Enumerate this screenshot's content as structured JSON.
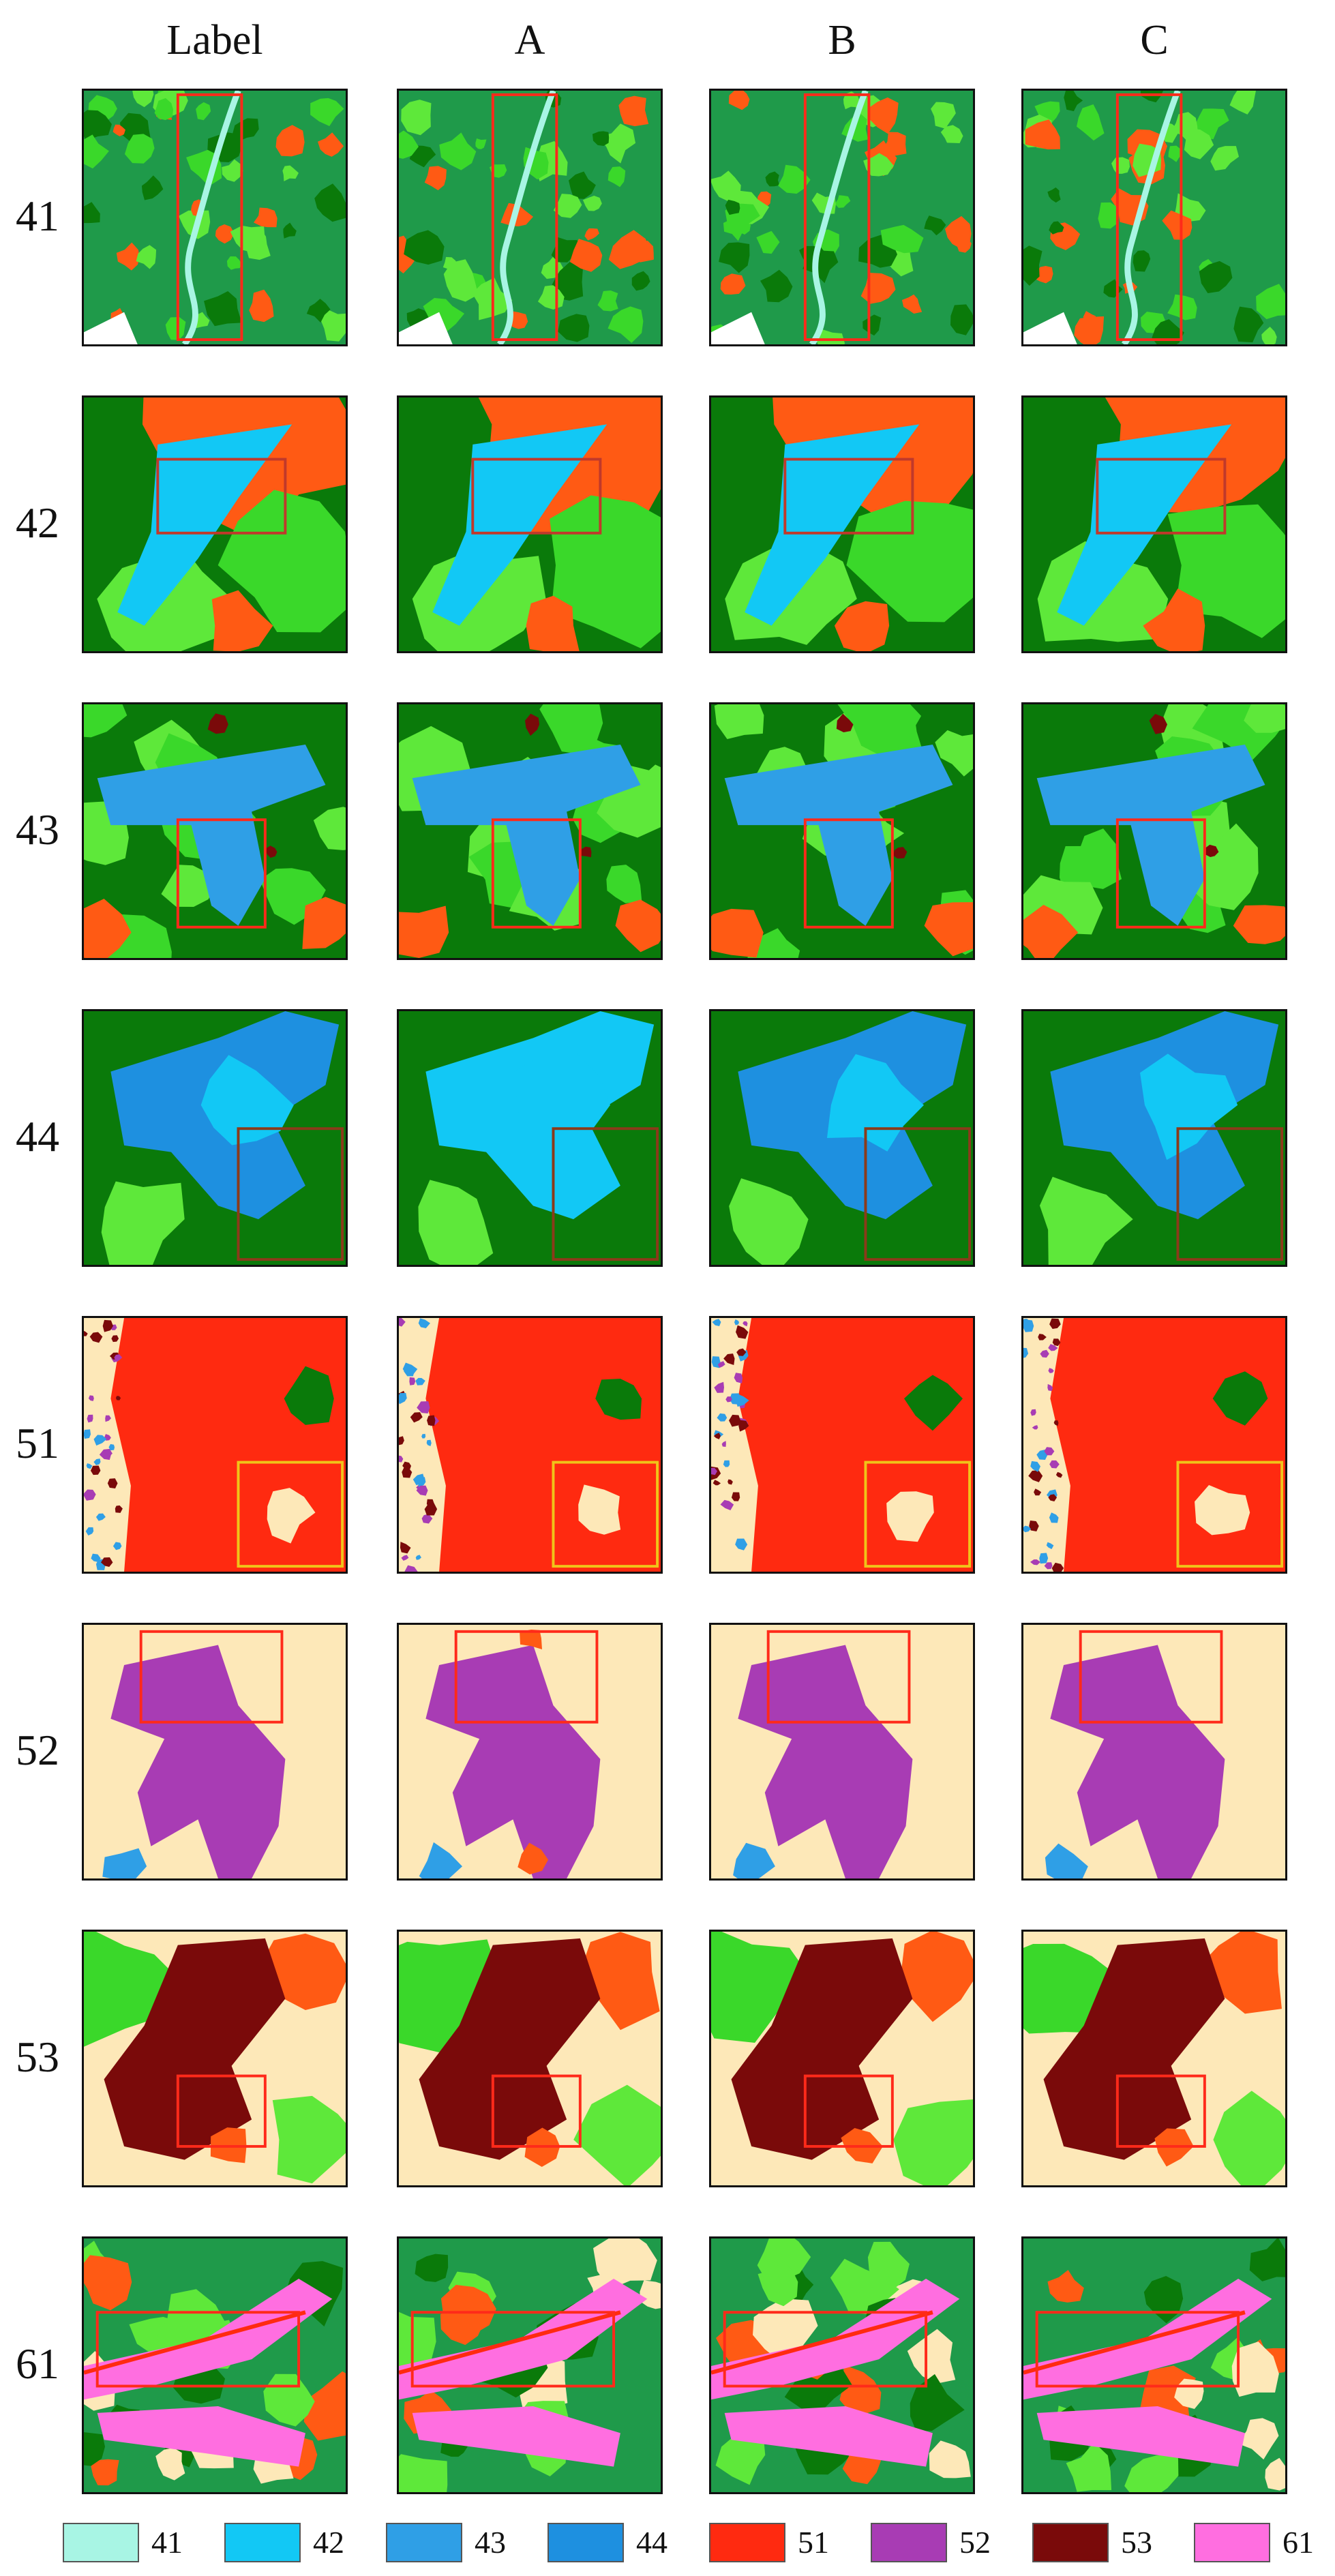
{
  "columns": [
    "Label",
    "A",
    "B",
    "C"
  ],
  "rows": [
    {
      "label": "41",
      "kind": "forest-river",
      "box": "#ff2a1a"
    },
    {
      "label": "42",
      "kind": "lake-orange",
      "box": "#c0392b"
    },
    {
      "label": "43",
      "kind": "blue-branch",
      "box": "#ff2a1a"
    },
    {
      "label": "44",
      "kind": "blue-lake",
      "box": "#8b3a1a"
    },
    {
      "label": "51",
      "kind": "red-urban",
      "box": "#f0c419"
    },
    {
      "label": "52",
      "kind": "purple-beige",
      "box": "#ff2a1a"
    },
    {
      "label": "53",
      "kind": "maroon-patch",
      "box": "#ff2a1a"
    },
    {
      "label": "61",
      "kind": "pink-bands",
      "box": "#ff2a1a"
    }
  ],
  "legend": [
    {
      "label": "41",
      "color": "#a8f5e4"
    },
    {
      "label": "42",
      "color": "#12c8f5"
    },
    {
      "label": "43",
      "color": "#2f9fe6"
    },
    {
      "label": "44",
      "color": "#1e90e0"
    },
    {
      "label": "51",
      "color": "#ff2a10"
    },
    {
      "label": "52",
      "color": "#a83cb4"
    },
    {
      "label": "53",
      "color": "#7a0a0a"
    },
    {
      "label": "61",
      "color": "#ff6ee0"
    }
  ],
  "colors": {
    "dark_green": "#0a7a0a",
    "mid_green": "#1f9a4a",
    "light_green": "#5ee83a",
    "lime": "#3ad82a",
    "orange": "#ff5a14",
    "beige": "#fde8b8"
  }
}
